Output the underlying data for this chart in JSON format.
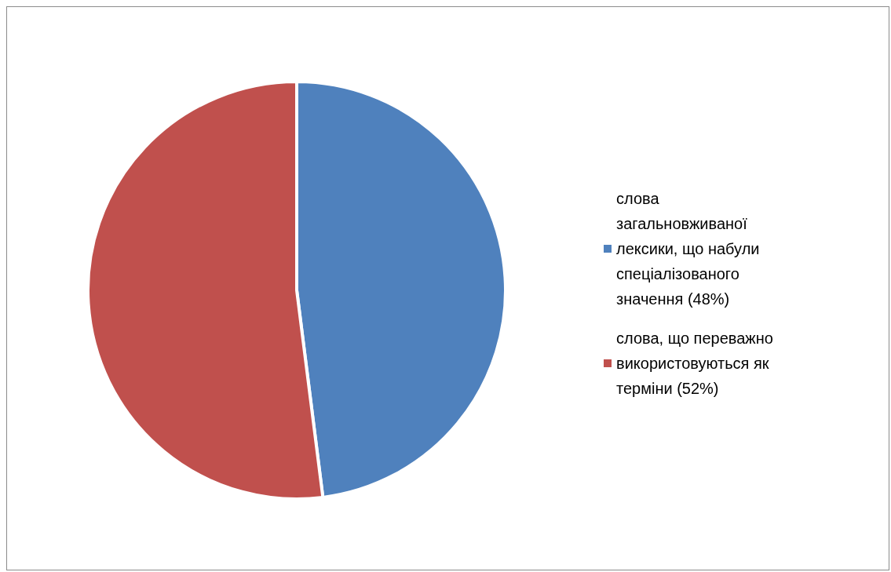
{
  "chart_data": {
    "type": "pie",
    "categories": [
      "слова загальновживаної лексики, що набули спеціалізованого значення (48%)",
      "слова, що переважно використовуються як терміни (52%)"
    ],
    "values": [
      48,
      52
    ],
    "colors": [
      "#4f81bd",
      "#c0504d"
    ],
    "legend": "right"
  }
}
